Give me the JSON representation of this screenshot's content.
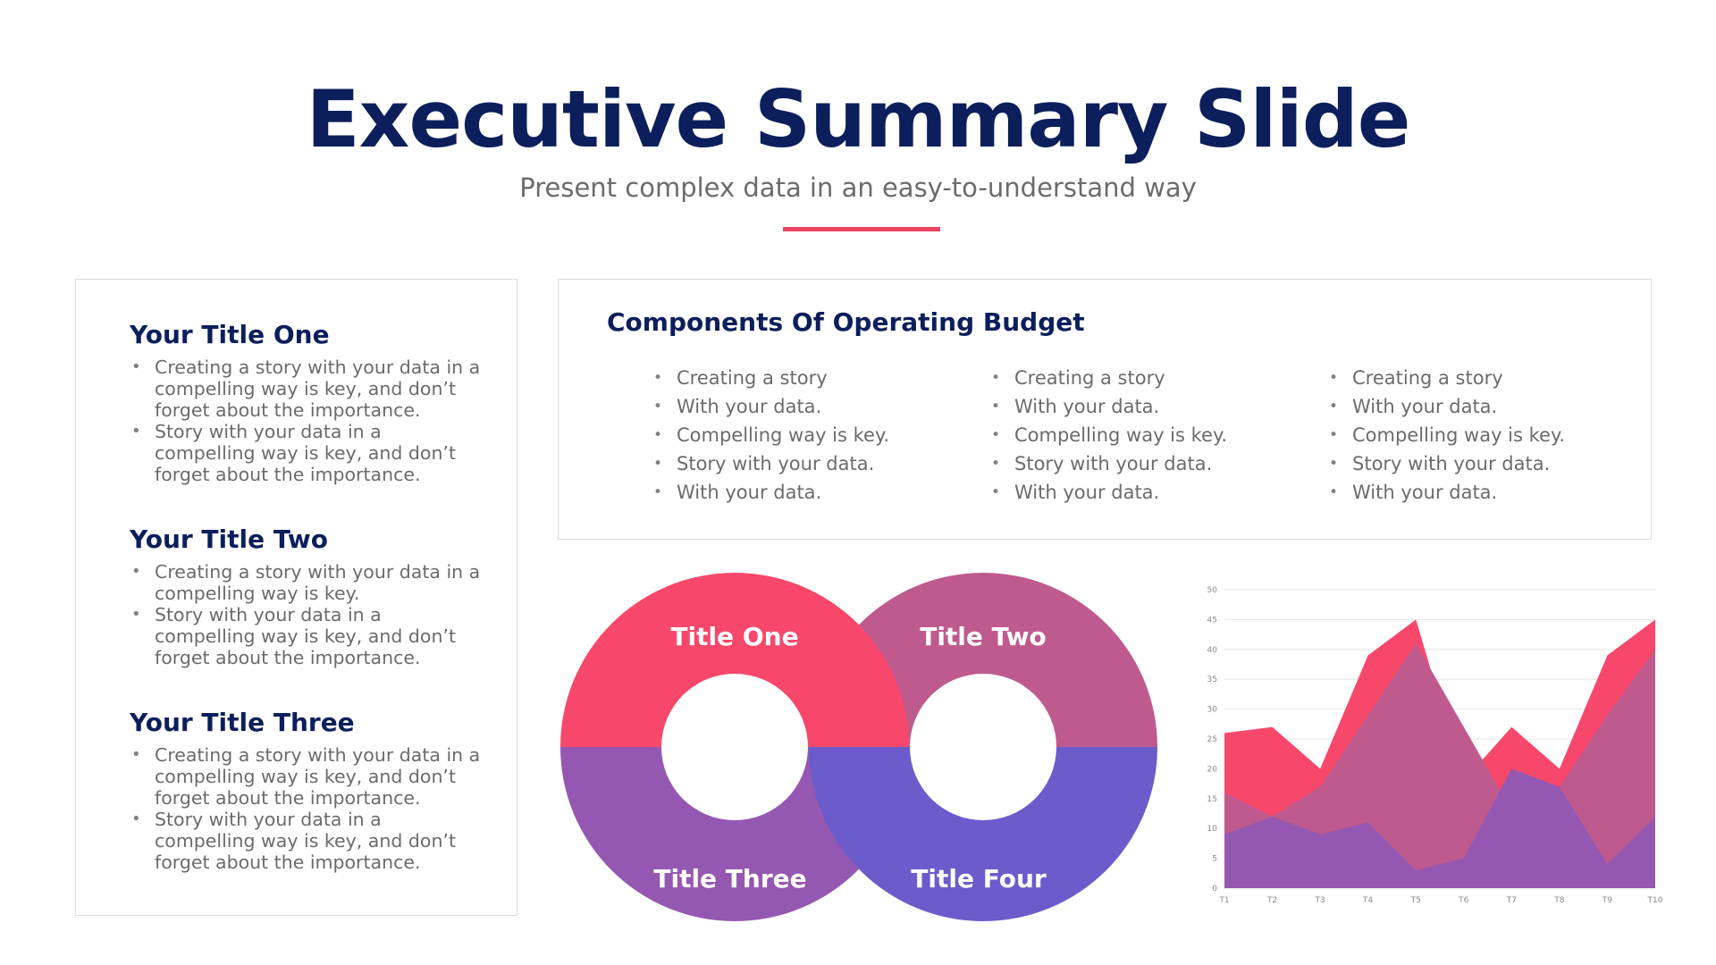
{
  "header": {
    "title": "Executive Summary Slide",
    "subtitle": "Present complex data in an easy-to-understand way",
    "accent_color": "#e84560"
  },
  "left_panel": {
    "sections": [
      {
        "title": "Your Title One",
        "bullets": [
          "Creating a story with your data in a compelling way is key, and don’t forget about the importance.",
          "Story with your data in a compelling way is key, and don’t forget about the importance."
        ]
      },
      {
        "title": "Your Title Two",
        "bullets": [
          "Creating a story with your data in a compelling way is key.",
          "Story with your data in a compelling way is key, and don’t forget about the importance."
        ]
      },
      {
        "title": "Your Title Three",
        "bullets": [
          "Creating a story with your data in a compelling way is key, and don’t forget about the importance.",
          "Story with your data in a compelling way is key, and don’t forget about the importance."
        ]
      }
    ]
  },
  "budget": {
    "title": "Components Of Operating Budget",
    "columns": [
      [
        "Creating a story",
        "With your data.",
        "Compelling way is key.",
        "Story with your data.",
        "With your data."
      ],
      [
        "Creating a story",
        "With your data.",
        "Compelling way is key.",
        "Story with your data.",
        "With your data."
      ],
      [
        "Creating a story",
        "With your data.",
        "Compelling way is key.",
        "Story with your data.",
        "With your data."
      ]
    ]
  },
  "donut_diagram": {
    "labels": [
      "Title One",
      "Title Two",
      "Title Three",
      "Title Four"
    ],
    "colors": [
      "#f7486b",
      "#bf5a8e",
      "#9558b2",
      "#6b5bcb"
    ]
  },
  "chart_data": {
    "type": "area",
    "x": [
      "T1",
      "T2",
      "T3",
      "T4",
      "T5",
      "T6",
      "T7",
      "T8",
      "T9",
      "T10"
    ],
    "yticks": [
      0,
      5,
      10,
      15,
      20,
      25,
      30,
      35,
      40,
      45,
      50
    ],
    "ylim": [
      0,
      50
    ],
    "grid": true,
    "series": [
      {
        "color": "#f7486b",
        "values": [
          26,
          27,
          20,
          39,
          45,
          18,
          27,
          20,
          39,
          45
        ]
      },
      {
        "color": "#bf5a8e",
        "values": [
          16,
          12,
          17,
          29,
          41,
          27,
          13,
          17,
          29,
          40
        ]
      },
      {
        "color": "#9558b2",
        "values": [
          9,
          12,
          9,
          11,
          3,
          5,
          20,
          17,
          4,
          12
        ]
      }
    ]
  }
}
